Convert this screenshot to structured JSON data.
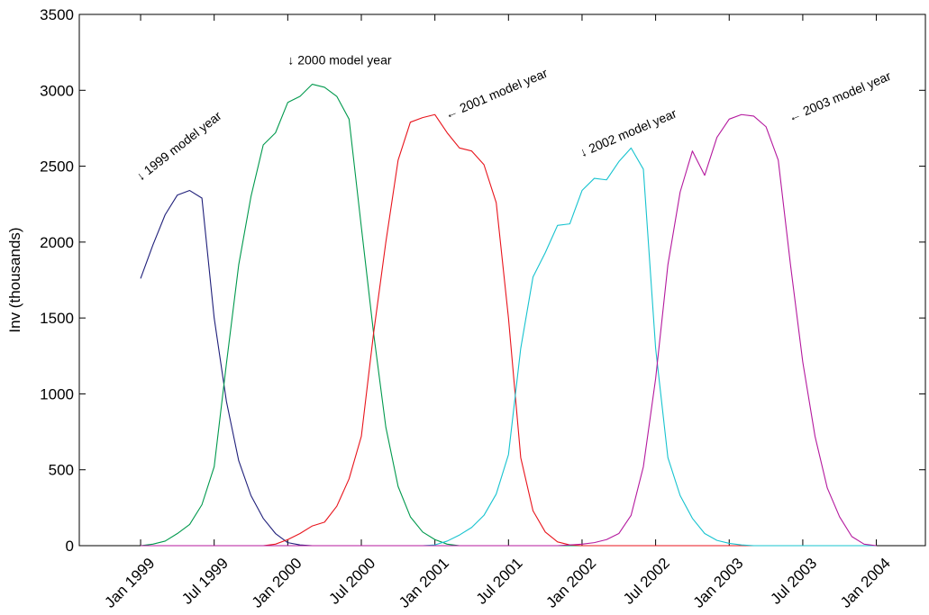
{
  "chart_data": {
    "type": "line",
    "title": "",
    "xlabel": "",
    "ylabel": "Inv (thousands)",
    "ylim": [
      0,
      3500
    ],
    "xlim": [
      "1998-08",
      "2004-05"
    ],
    "y_ticks": [
      0,
      500,
      1000,
      1500,
      2000,
      2500,
      3000,
      3500
    ],
    "x_ticks": [
      {
        "label": "Jan 1999",
        "date": "1999-01"
      },
      {
        "label": "Jul 1999",
        "date": "1999-07"
      },
      {
        "label": "Jan 2000",
        "date": "2000-01"
      },
      {
        "label": "Jul 2000",
        "date": "2000-07"
      },
      {
        "label": "Jan 2001",
        "date": "2001-01"
      },
      {
        "label": "Jul 2001",
        "date": "2001-07"
      },
      {
        "label": "Jan 2002",
        "date": "2002-01"
      },
      {
        "label": "Jul 2002",
        "date": "2002-07"
      },
      {
        "label": "Jan 2003",
        "date": "2003-01"
      },
      {
        "label": "Jul 2003",
        "date": "2003-07"
      },
      {
        "label": "Jan 2004",
        "date": "2004-01"
      }
    ],
    "grid": false,
    "legend": "none",
    "series": [
      {
        "color": "#1f1f7a",
        "start": "1999-01",
        "values": [
          1760,
          1980,
          2180,
          2310,
          2340,
          2290,
          1500,
          950,
          560,
          330,
          180,
          80,
          20,
          5,
          0,
          0,
          0,
          0,
          0,
          0,
          0,
          0,
          0,
          0,
          0,
          0,
          0,
          0,
          0,
          0,
          0,
          0,
          0,
          0,
          0,
          0,
          0,
          0,
          0,
          0,
          0,
          0,
          0,
          0,
          0,
          0,
          0,
          0,
          0,
          0,
          0,
          0,
          0,
          0,
          0,
          0,
          0,
          0,
          0,
          0,
          0
        ]
      },
      {
        "color": "#00994d",
        "start": "1999-01",
        "values": [
          0,
          10,
          30,
          80,
          140,
          270,
          520,
          1200,
          1850,
          2300,
          2640,
          2720,
          2920,
          2960,
          3040,
          3020,
          2960,
          2810,
          2100,
          1400,
          780,
          390,
          190,
          90,
          40,
          10,
          0,
          0,
          0,
          0,
          0,
          0,
          0,
          0,
          0,
          0,
          0,
          0,
          0,
          0,
          0,
          0,
          0,
          0,
          0,
          0,
          0,
          0,
          0,
          0,
          0,
          0,
          0,
          0,
          0,
          0,
          0,
          0,
          0,
          0,
          0
        ]
      },
      {
        "color": "#e8141c",
        "start": "1999-01",
        "values": [
          0,
          0,
          0,
          0,
          0,
          0,
          0,
          0,
          0,
          0,
          0,
          10,
          40,
          80,
          130,
          155,
          260,
          440,
          720,
          1400,
          2000,
          2540,
          2790,
          2820,
          2840,
          2720,
          2620,
          2600,
          2510,
          2260,
          1500,
          580,
          230,
          90,
          25,
          5,
          0,
          0,
          0,
          0,
          0,
          0,
          0,
          0,
          0,
          0,
          0,
          0,
          0,
          0,
          0,
          0,
          0,
          0,
          0,
          0,
          0,
          0,
          0,
          0,
          0
        ]
      },
      {
        "color": "#17c3cf",
        "start": "1999-01",
        "values": [
          0,
          0,
          0,
          0,
          0,
          0,
          0,
          0,
          0,
          0,
          0,
          0,
          0,
          0,
          0,
          0,
          0,
          0,
          0,
          0,
          0,
          0,
          0,
          0,
          5,
          30,
          70,
          120,
          200,
          340,
          600,
          1300,
          1770,
          1930,
          2110,
          2120,
          2340,
          2420,
          2410,
          2530,
          2620,
          2480,
          1300,
          580,
          330,
          180,
          80,
          35,
          15,
          5,
          0,
          0,
          0,
          0,
          0,
          0,
          0,
          0,
          0,
          0,
          0
        ]
      },
      {
        "color": "#b4199e",
        "start": "1999-01",
        "values": [
          0,
          0,
          0,
          0,
          0,
          0,
          0,
          0,
          0,
          0,
          0,
          0,
          0,
          0,
          0,
          0,
          0,
          0,
          0,
          0,
          0,
          0,
          0,
          0,
          0,
          0,
          0,
          0,
          0,
          0,
          0,
          0,
          0,
          0,
          0,
          5,
          10,
          20,
          40,
          80,
          200,
          520,
          1100,
          1850,
          2330,
          2600,
          2440,
          2690,
          2810,
          2840,
          2830,
          2760,
          2540,
          1850,
          1210,
          720,
          380,
          190,
          60,
          10,
          0
        ]
      }
    ],
    "annotations": [
      {
        "text": "↓ 1999 model year",
        "date": "1999-01",
        "value": 2400,
        "rotate": -38
      },
      {
        "text": "↓ 2000 model year",
        "date": "2000-01",
        "value": 3170,
        "rotate": 0
      },
      {
        "text": "← 2001 model year",
        "date": "2001-02",
        "value": 2810,
        "rotate": -23
      },
      {
        "text": "↓ 2002 model year",
        "date": "2002-01",
        "value": 2560,
        "rotate": -23
      },
      {
        "text": "← 2003 model year",
        "date": "2003-06",
        "value": 2790,
        "rotate": -23
      }
    ]
  }
}
